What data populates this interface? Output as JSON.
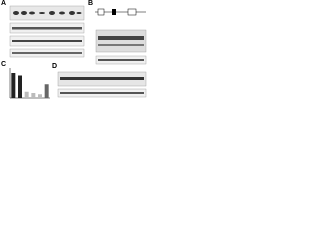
{
  "panels": {
    "a": "A",
    "b": "B",
    "c": "C",
    "d": "D"
  },
  "chart_data": {
    "type": "bar",
    "values": [
      1.0,
      0.9,
      0.25,
      0.2,
      0.15,
      0.55
    ],
    "colors": [
      "#222222",
      "#222222",
      "#bbbbbb",
      "#bbbbbb",
      "#bbbbbb",
      "#666666"
    ],
    "ylim": [
      0,
      1.2
    ]
  }
}
